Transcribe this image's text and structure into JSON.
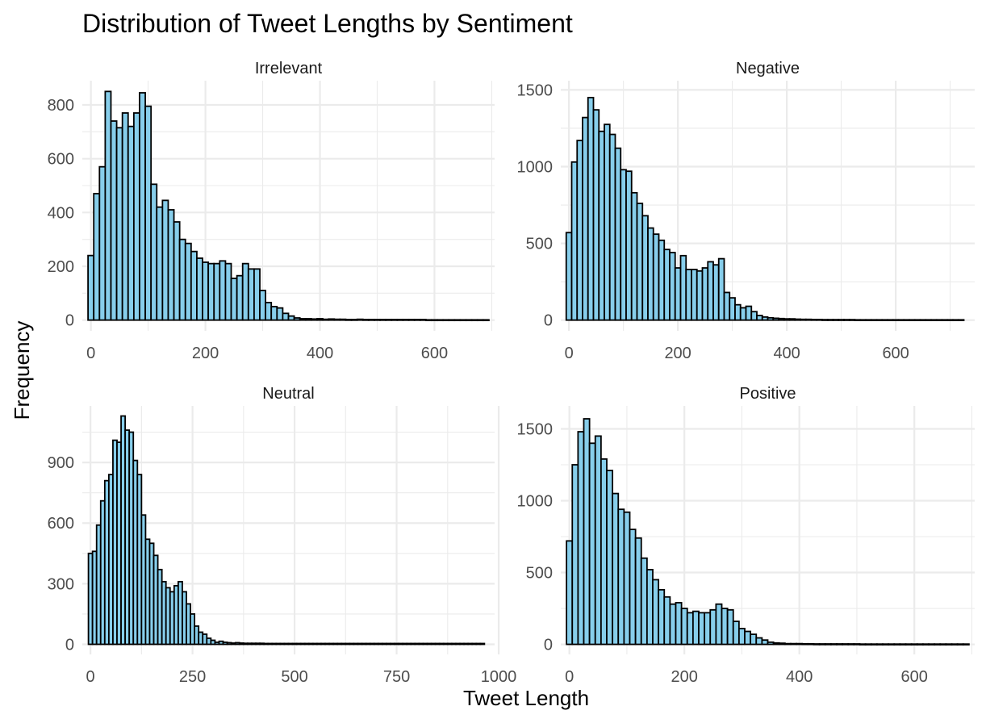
{
  "title": "Distribution of Tweet Lengths by Sentiment",
  "xlabel": "Tweet Length",
  "ylabel": "Frequency",
  "colors": {
    "bar_fill": "#87CEEB",
    "bar_stroke": "#000000",
    "grid": "#EBEBEB"
  },
  "chart_data": [
    {
      "type": "bar",
      "panel": "Irrelevant",
      "binwidth": 10,
      "x_start": 0,
      "xlim": [
        -15,
        705
      ],
      "ylim": [
        -40,
        890
      ],
      "x_ticks": [
        0,
        200,
        400,
        600
      ],
      "y_ticks": [
        0,
        200,
        400,
        600,
        800
      ],
      "values": [
        240,
        470,
        570,
        850,
        740,
        715,
        770,
        720,
        770,
        845,
        795,
        505,
        420,
        445,
        410,
        365,
        300,
        285,
        255,
        230,
        215,
        210,
        210,
        220,
        210,
        155,
        165,
        210,
        190,
        190,
        110,
        65,
        50,
        45,
        25,
        15,
        8,
        5,
        5,
        4,
        5,
        3,
        4,
        3,
        3,
        2,
        2,
        3,
        2,
        2,
        2,
        2,
        2,
        2,
        2,
        2,
        2,
        2,
        2,
        1,
        1,
        1,
        1,
        1,
        1,
        1,
        1,
        1,
        1,
        1
      ]
    },
    {
      "type": "bar",
      "panel": "Negative",
      "binwidth": 10,
      "x_start": 0,
      "xlim": [
        -15,
        745
      ],
      "ylim": [
        -70,
        1560
      ],
      "x_ticks": [
        0,
        200,
        400,
        600
      ],
      "y_ticks": [
        0,
        500,
        1000,
        1500
      ],
      "values": [
        570,
        1030,
        1170,
        1320,
        1450,
        1370,
        1230,
        1275,
        1210,
        1120,
        980,
        970,
        830,
        760,
        680,
        600,
        560,
        520,
        460,
        440,
        340,
        420,
        330,
        330,
        320,
        340,
        380,
        360,
        400,
        180,
        145,
        100,
        80,
        90,
        55,
        30,
        20,
        15,
        12,
        10,
        8,
        8,
        6,
        5,
        5,
        4,
        4,
        3,
        3,
        3,
        3,
        3,
        3,
        2,
        2,
        2,
        2,
        2,
        2,
        2,
        2,
        2,
        2,
        2,
        2,
        2,
        2,
        2,
        2,
        2,
        2,
        2,
        2
      ]
    },
    {
      "type": "bar",
      "panel": "Neutral",
      "binwidth": 10,
      "x_start": 0,
      "xlim": [
        -20,
        990
      ],
      "ylim": [
        -50,
        1180
      ],
      "x_ticks": [
        0,
        250,
        500,
        750,
        1000
      ],
      "y_ticks": [
        0,
        300,
        600,
        900
      ],
      "values": [
        450,
        460,
        590,
        710,
        810,
        840,
        1010,
        1000,
        1130,
        1060,
        1050,
        910,
        840,
        640,
        520,
        500,
        440,
        370,
        310,
        280,
        260,
        290,
        310,
        260,
        200,
        150,
        90,
        60,
        50,
        30,
        20,
        10,
        15,
        10,
        8,
        6,
        8,
        6,
        5,
        5,
        5,
        5,
        5,
        4,
        4,
        4,
        4,
        4,
        4,
        4,
        4,
        4,
        4,
        4,
        4,
        4,
        4,
        4,
        4,
        4,
        4,
        4,
        4,
        4,
        4,
        4,
        4,
        4,
        4,
        4,
        4,
        4,
        4,
        4,
        4,
        4,
        4,
        4,
        4,
        4,
        4,
        4,
        4,
        4,
        4,
        4,
        4,
        4,
        4,
        4,
        4,
        4,
        4,
        4,
        4,
        4,
        4
      ]
    },
    {
      "type": "bar",
      "panel": "Positive",
      "binwidth": 10,
      "x_start": 0,
      "xlim": [
        -15,
        705
      ],
      "ylim": [
        -70,
        1660
      ],
      "x_ticks": [
        0,
        200,
        400,
        600
      ],
      "y_ticks": [
        0,
        500,
        1000,
        1500
      ],
      "values": [
        720,
        1250,
        1480,
        1570,
        1400,
        1450,
        1290,
        1210,
        1050,
        940,
        920,
        800,
        740,
        600,
        520,
        450,
        380,
        330,
        280,
        290,
        250,
        220,
        230,
        220,
        220,
        240,
        280,
        250,
        240,
        160,
        110,
        90,
        70,
        45,
        30,
        15,
        10,
        8,
        5,
        5,
        5,
        4,
        4,
        3,
        3,
        3,
        3,
        3,
        3,
        3,
        3,
        2,
        2,
        2,
        2,
        2,
        2,
        2,
        2,
        2,
        2,
        2,
        2,
        2,
        2,
        2,
        2,
        2,
        2,
        2
      ]
    }
  ]
}
